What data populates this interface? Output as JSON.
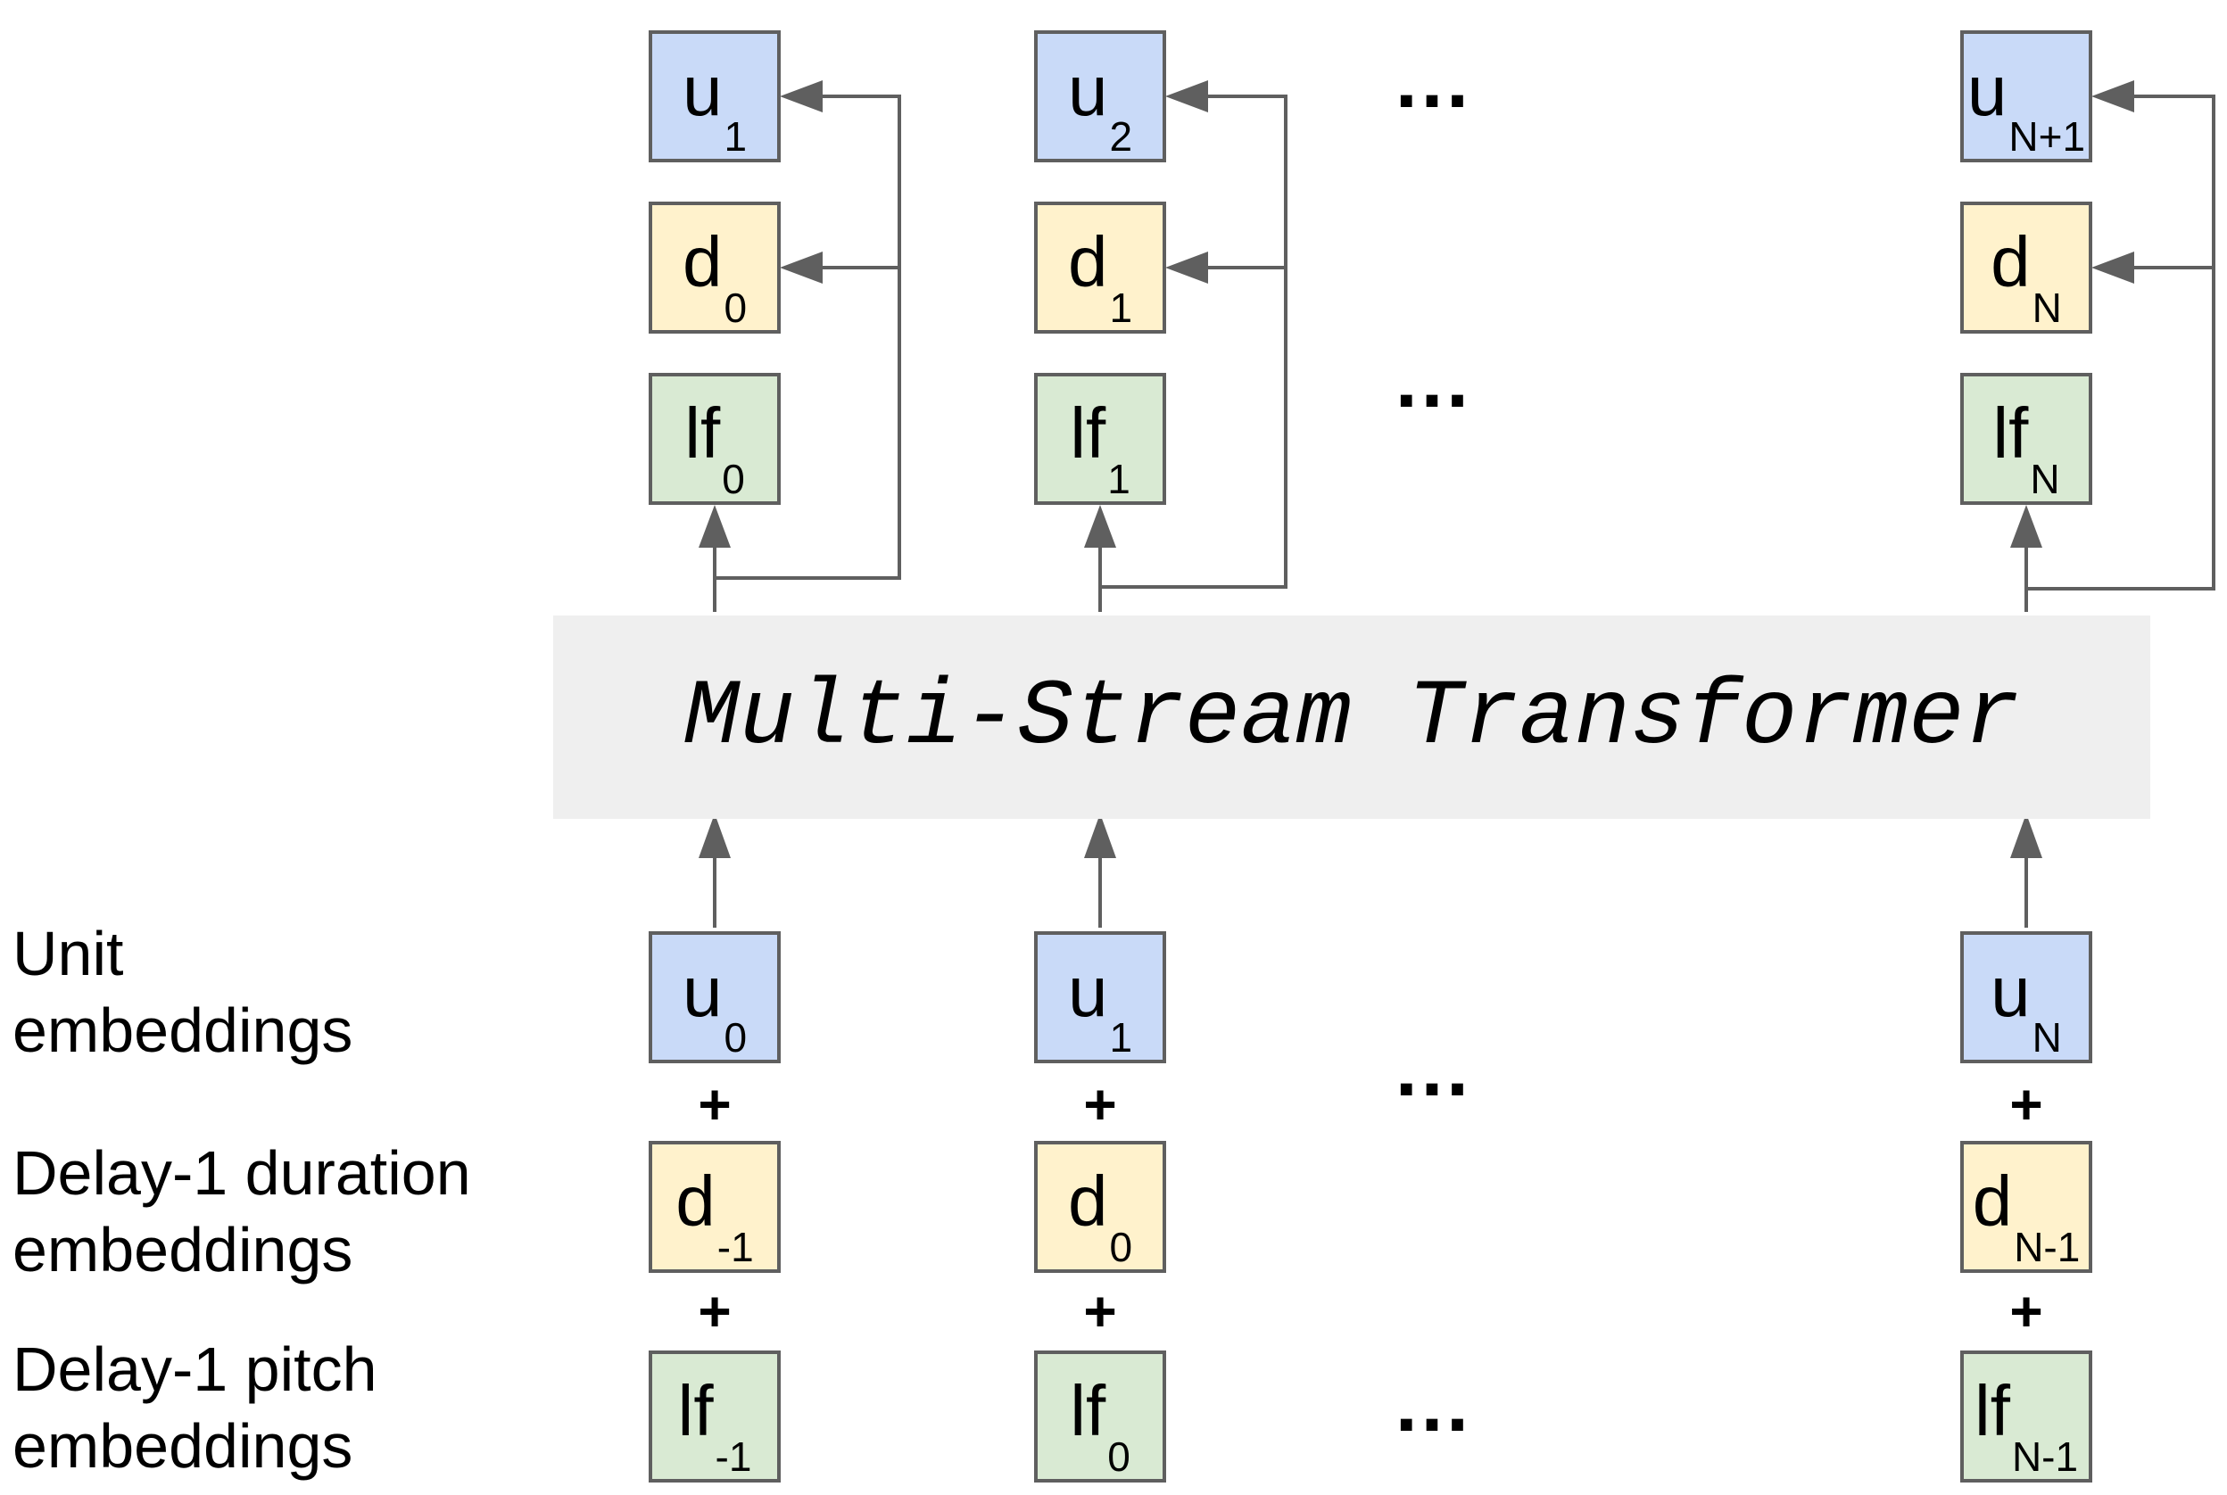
{
  "transformer": {
    "title": "Multi-Stream Transformer"
  },
  "row_labels": {
    "unit": [
      "Unit",
      "embeddings"
    ],
    "duration": [
      "Delay-1 duration",
      "embeddings"
    ],
    "pitch": [
      "Delay-1 pitch",
      "embeddings"
    ]
  },
  "outputs": [
    {
      "unit": {
        "main": "u",
        "sub": "1"
      },
      "duration": {
        "main": "d",
        "sub": "0"
      },
      "pitch": {
        "main": "lf",
        "sub": "0"
      }
    },
    {
      "unit": {
        "main": "u",
        "sub": "2"
      },
      "duration": {
        "main": "d",
        "sub": "1"
      },
      "pitch": {
        "main": "lf",
        "sub": "1"
      }
    },
    {
      "unit": {
        "main": "u",
        "sub": "N+1"
      },
      "duration": {
        "main": "d",
        "sub": "N"
      },
      "pitch": {
        "main": "lf",
        "sub": "N"
      }
    }
  ],
  "inputs": [
    {
      "unit": {
        "main": "u",
        "sub": "0"
      },
      "duration": {
        "main": "d",
        "sub": "-1"
      },
      "pitch": {
        "main": "lf",
        "sub": "-1"
      }
    },
    {
      "unit": {
        "main": "u",
        "sub": "1"
      },
      "duration": {
        "main": "d",
        "sub": "0"
      },
      "pitch": {
        "main": "lf",
        "sub": "0"
      }
    },
    {
      "unit": {
        "main": "u",
        "sub": "N"
      },
      "duration": {
        "main": "d",
        "sub": "N-1"
      },
      "pitch": {
        "main": "lf",
        "sub": "N-1"
      }
    }
  ],
  "plus_sign": "+",
  "ellipsis": "…",
  "colors": {
    "unit": "#c9daf8",
    "duration": "#fff2cc",
    "pitch": "#d9ead3",
    "border": "#5f5f5f",
    "transformer": "#efefef"
  }
}
